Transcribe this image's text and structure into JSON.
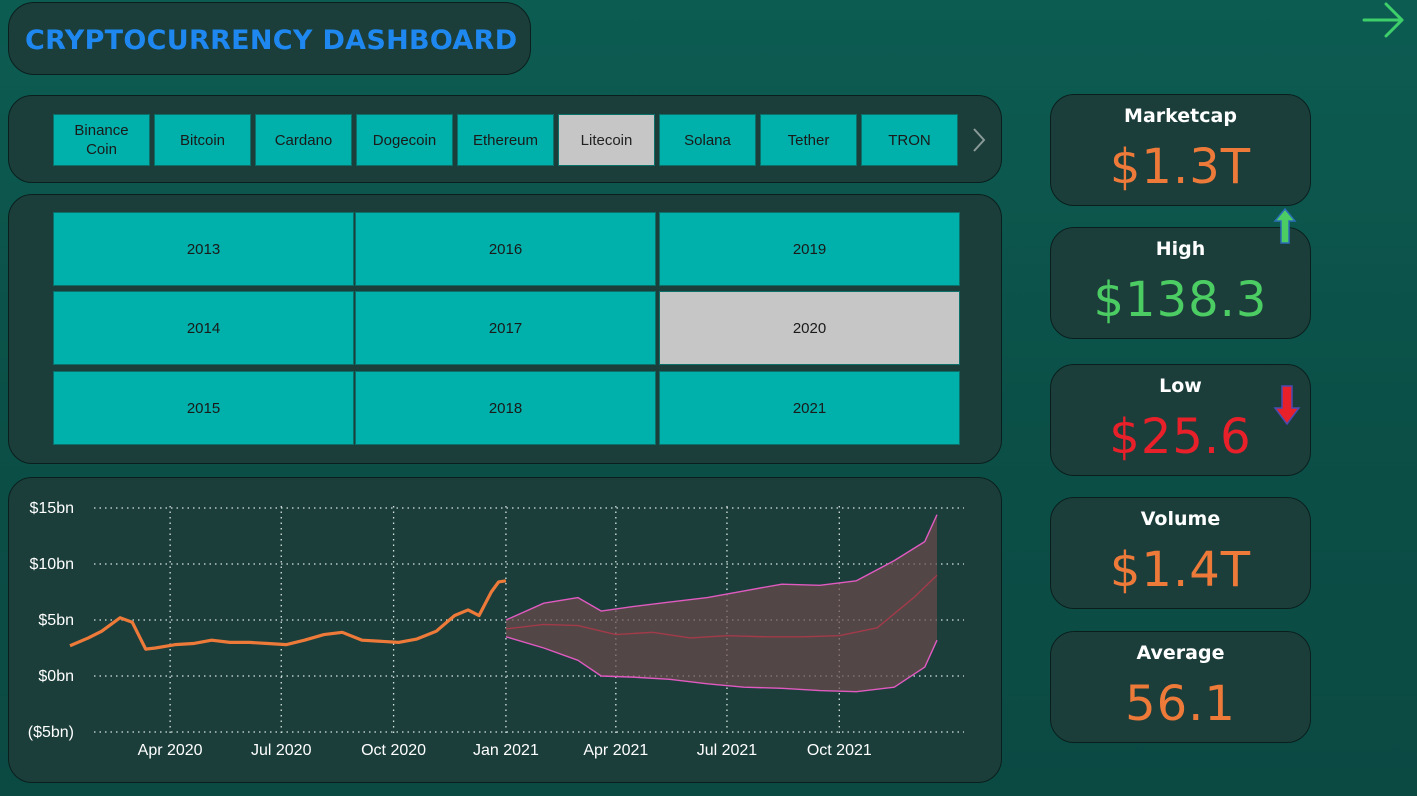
{
  "header": {
    "title": "CRYPTOCURRENCY DASHBOARD"
  },
  "coins": {
    "items": [
      "Binance Coin",
      "Bitcoin",
      "Cardano",
      "Dogecoin",
      "Ethereum",
      "Litecoin",
      "Solana",
      "Tether",
      "TRON"
    ],
    "selected": "Litecoin"
  },
  "years": {
    "items": [
      "2013",
      "2016",
      "2019",
      "2014",
      "2017",
      "2020",
      "2015",
      "2018",
      "2021"
    ],
    "selected": "2020"
  },
  "kpis": {
    "marketcap": {
      "label": "Marketcap",
      "value": "$1.3T",
      "color": "#ee7a3a"
    },
    "high": {
      "label": "High",
      "value": "$138.3",
      "color": "#4ccd63"
    },
    "low": {
      "label": "Low",
      "value": "$25.6",
      "color": "#e8202a"
    },
    "volume": {
      "label": "Volume",
      "value": "$1.4T",
      "color": "#ee7a3a"
    },
    "average": {
      "label": "Average",
      "value": "56.1",
      "color": "#ee7a3a"
    }
  },
  "icons": {
    "nav": "arrow-right-icon",
    "coin_next": "chevron-right-icon",
    "high_trend": "arrow-up-icon",
    "low_trend": "arrow-down-icon"
  },
  "chart_data": {
    "type": "line",
    "y_ticks": [
      "$15bn",
      "$10bn",
      "$5bn",
      "$0bn",
      "($5bn)"
    ],
    "x_ticks": [
      "Apr 2020",
      "Jul 2020",
      "Oct 2020",
      "Jan 2021",
      "Apr 2021",
      "Jul 2021",
      "Oct 2021"
    ],
    "ylim": [
      -5,
      15
    ],
    "grid": true,
    "series": [
      {
        "kind": "actual",
        "color": "#ee7a3a",
        "points": [
          [
            "2020-01-10",
            2.7
          ],
          [
            "2020-01-25",
            3.4
          ],
          [
            "2020-02-05",
            4.0
          ],
          [
            "2020-02-20",
            5.2
          ],
          [
            "2020-03-01",
            4.8
          ],
          [
            "2020-03-12",
            2.4
          ],
          [
            "2020-03-20",
            2.5
          ],
          [
            "2020-04-05",
            2.8
          ],
          [
            "2020-04-20",
            2.9
          ],
          [
            "2020-05-05",
            3.2
          ],
          [
            "2020-05-20",
            3.0
          ],
          [
            "2020-06-05",
            3.0
          ],
          [
            "2020-06-20",
            2.9
          ],
          [
            "2020-07-05",
            2.8
          ],
          [
            "2020-07-20",
            3.2
          ],
          [
            "2020-08-05",
            3.7
          ],
          [
            "2020-08-20",
            3.9
          ],
          [
            "2020-09-05",
            3.2
          ],
          [
            "2020-09-20",
            3.1
          ],
          [
            "2020-10-05",
            3.0
          ],
          [
            "2020-10-20",
            3.3
          ],
          [
            "2020-11-05",
            4.0
          ],
          [
            "2020-11-20",
            5.4
          ],
          [
            "2020-12-01",
            5.9
          ],
          [
            "2020-12-10",
            5.4
          ],
          [
            "2020-12-20",
            7.5
          ],
          [
            "2020-12-26",
            8.4
          ],
          [
            "2021-01-01",
            8.5
          ]
        ]
      },
      {
        "kind": "forecast",
        "color": "#a23a4a",
        "points": [
          [
            "2021-01-01",
            4.2
          ],
          [
            "2021-02-01",
            4.6
          ],
          [
            "2021-03-01",
            4.5
          ],
          [
            "2021-04-01",
            3.7
          ],
          [
            "2021-05-01",
            3.9
          ],
          [
            "2021-06-01",
            3.4
          ],
          [
            "2021-07-01",
            3.6
          ],
          [
            "2021-08-01",
            3.5
          ],
          [
            "2021-09-01",
            3.5
          ],
          [
            "2021-10-01",
            3.6
          ],
          [
            "2021-11-01",
            4.3
          ],
          [
            "2021-12-01",
            7.0
          ],
          [
            "2021-12-20",
            9.0
          ]
        ]
      },
      {
        "kind": "forecast-upper",
        "color": "#e05ac0",
        "points": [
          [
            "2021-01-01",
            5.0
          ],
          [
            "2021-02-01",
            6.5
          ],
          [
            "2021-03-01",
            7.0
          ],
          [
            "2021-03-20",
            5.8
          ],
          [
            "2021-04-15",
            6.2
          ],
          [
            "2021-05-15",
            6.6
          ],
          [
            "2021-06-15",
            7.0
          ],
          [
            "2021-07-15",
            7.6
          ],
          [
            "2021-08-15",
            8.2
          ],
          [
            "2021-09-15",
            8.1
          ],
          [
            "2021-10-15",
            8.5
          ],
          [
            "2021-11-15",
            10.3
          ],
          [
            "2021-12-10",
            12.0
          ],
          [
            "2021-12-20",
            14.4
          ]
        ]
      },
      {
        "kind": "forecast-lower",
        "color": "#e05ac0",
        "points": [
          [
            "2021-01-01",
            3.5
          ],
          [
            "2021-02-01",
            2.5
          ],
          [
            "2021-03-01",
            1.4
          ],
          [
            "2021-03-20",
            0.0
          ],
          [
            "2021-04-15",
            -0.1
          ],
          [
            "2021-05-15",
            -0.3
          ],
          [
            "2021-06-15",
            -0.7
          ],
          [
            "2021-07-15",
            -1.0
          ],
          [
            "2021-08-15",
            -1.1
          ],
          [
            "2021-09-15",
            -1.3
          ],
          [
            "2021-10-15",
            -1.4
          ],
          [
            "2021-11-15",
            -1.0
          ],
          [
            "2021-12-10",
            0.8
          ],
          [
            "2021-12-20",
            3.2
          ]
        ]
      }
    ]
  }
}
